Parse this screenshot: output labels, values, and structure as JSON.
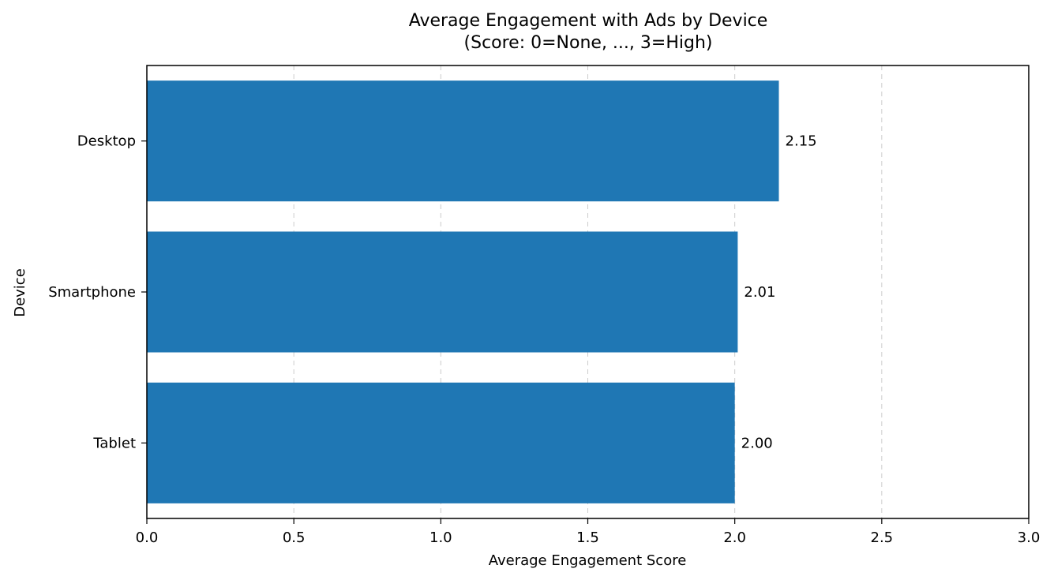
{
  "chart_data": {
    "type": "bar",
    "orientation": "horizontal",
    "title": "Average Engagement with Ads by Device",
    "subtitle": "(Score: 0=None, ..., 3=High)",
    "xlabel": "Average Engagement Score",
    "ylabel": "Device",
    "categories": [
      "Desktop",
      "Smartphone",
      "Tablet"
    ],
    "values": [
      2.15,
      2.01,
      2.0
    ],
    "value_labels": [
      "2.15",
      "2.01",
      "2.00"
    ],
    "xlim": [
      0,
      3.0
    ],
    "xticks": [
      0.0,
      0.5,
      1.0,
      1.5,
      2.0,
      2.5,
      3.0
    ],
    "xtick_labels": [
      "0.0",
      "0.5",
      "1.0",
      "1.5",
      "2.0",
      "2.5",
      "3.0"
    ],
    "grid": "x, dashed",
    "bar_color": "#1f77b4"
  }
}
